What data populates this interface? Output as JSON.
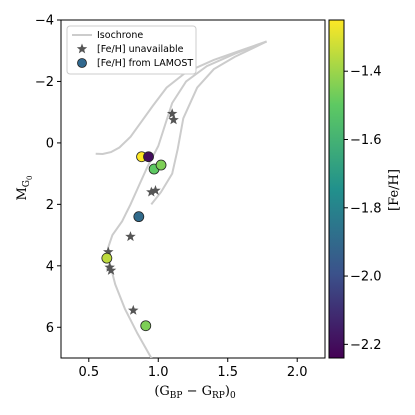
{
  "chart_data": {
    "type": "scatter",
    "xlabel": "(G_BP − G_RP)_0",
    "ylabel": "M_G_0",
    "xlim": [
      0.3,
      2.2
    ],
    "ylim": [
      7,
      -4
    ],
    "x_ticks": [
      "0.5",
      "1.0",
      "1.5",
      "2.0"
    ],
    "x_tick_values": [
      0.5,
      1.0,
      1.5,
      2.0
    ],
    "y_ticks": [
      "−4",
      "−2",
      "0",
      "2",
      "4",
      "6"
    ],
    "y_tick_values": [
      -4,
      -2,
      0,
      2,
      4,
      6
    ],
    "legend_position": "top-left",
    "legend": {
      "isochrone": "Isochrone",
      "unavailable": "[Fe/H] unavailable",
      "lamost": "[Fe/H] from LAMOST"
    },
    "colorbar": {
      "label": "[Fe/H]",
      "range": [
        -2.24,
        -1.25
      ],
      "ticks": [
        "−1.4",
        "−1.6",
        "−1.8",
        "−2.0",
        "−2.2"
      ],
      "tick_values": [
        -1.4,
        -1.6,
        -1.8,
        -2.0,
        -2.2
      ],
      "colormap": [
        "#440154",
        "#3b528b",
        "#21918c",
        "#5ec962",
        "#fde725"
      ]
    },
    "isochrone": {
      "color": "#cccccc",
      "curves": [
        [
          [
            0.95,
            7.0
          ],
          [
            0.85,
            6.2
          ],
          [
            0.76,
            5.4
          ],
          [
            0.69,
            4.6
          ],
          [
            0.645,
            3.8
          ],
          [
            0.64,
            3.4
          ],
          [
            0.67,
            3.0
          ],
          [
            0.74,
            2.55
          ],
          [
            0.8,
            2.0
          ],
          [
            0.86,
            1.4
          ],
          [
            0.92,
            0.8
          ],
          [
            1.0,
            0.1
          ],
          [
            1.05,
            -0.6
          ],
          [
            1.1,
            -1.3
          ],
          [
            1.2,
            -2.0
          ],
          [
            1.35,
            -2.5
          ],
          [
            1.55,
            -2.9
          ],
          [
            1.78,
            -3.3
          ]
        ],
        [
          [
            1.78,
            -3.3
          ],
          [
            1.55,
            -2.8
          ],
          [
            1.4,
            -2.4
          ],
          [
            1.28,
            -1.8
          ],
          [
            1.18,
            -0.8
          ],
          [
            1.14,
            0.2
          ],
          [
            1.1,
            1.0
          ],
          [
            1.02,
            1.6
          ],
          [
            0.95,
            2.0
          ]
        ],
        [
          [
            0.55,
            0.35
          ],
          [
            0.6,
            0.36
          ],
          [
            0.66,
            0.3
          ],
          [
            0.72,
            0.15
          ],
          [
            0.8,
            -0.2
          ],
          [
            0.88,
            -0.7
          ],
          [
            0.96,
            -1.2
          ],
          [
            1.06,
            -1.8
          ],
          [
            1.2,
            -2.3
          ],
          [
            1.4,
            -2.7
          ],
          [
            1.62,
            -3.05
          ],
          [
            1.78,
            -3.3
          ]
        ],
        [
          [
            0.95,
            7.0
          ],
          [
            1.02,
            7.5
          ],
          [
            1.1,
            8.0
          ]
        ]
      ]
    },
    "series": [
      {
        "name": "[Fe/H] unavailable",
        "marker": "star",
        "color": "#555555",
        "points": [
          [
            1.1,
            -0.95
          ],
          [
            1.11,
            -0.75
          ],
          [
            0.98,
            1.55
          ],
          [
            0.95,
            1.6
          ],
          [
            0.8,
            3.05
          ],
          [
            0.64,
            3.55
          ],
          [
            0.65,
            4.05
          ],
          [
            0.66,
            4.15
          ],
          [
            0.82,
            5.45
          ]
        ]
      },
      {
        "name": "[Fe/H] from LAMOST",
        "marker": "circle",
        "points": [
          {
            "x": 0.88,
            "y": 0.45,
            "feh": -1.25
          },
          {
            "x": 0.93,
            "y": 0.45,
            "feh": -2.2
          },
          {
            "x": 0.97,
            "y": 0.85,
            "feh": -1.5
          },
          {
            "x": 1.02,
            "y": 0.72,
            "feh": -1.45
          },
          {
            "x": 0.86,
            "y": 2.4,
            "feh": -1.9
          },
          {
            "x": 0.63,
            "y": 3.75,
            "feh": -1.35
          },
          {
            "x": 0.91,
            "y": 5.95,
            "feh": -1.45
          }
        ]
      }
    ]
  }
}
